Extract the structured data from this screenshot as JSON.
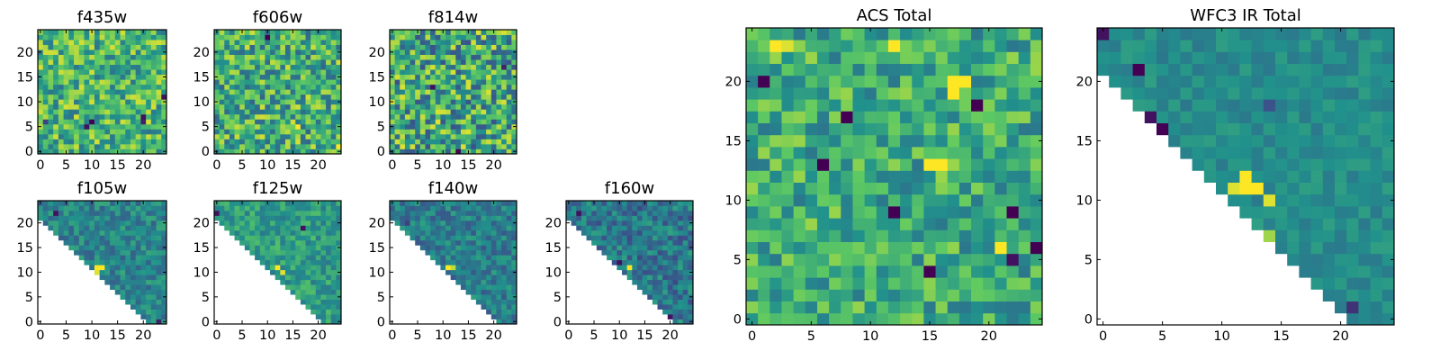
{
  "figure": {
    "colormap": "viridis",
    "colormap_stops": [
      "#440154",
      "#3b528b",
      "#21918c",
      "#5ec962",
      "#fde725"
    ],
    "background": "#ffffff",
    "frame_color": "#000000"
  },
  "chart_data": [
    {
      "type": "heatmap",
      "title": "f435w",
      "grid": [
        25,
        25
      ],
      "masked_corner": false,
      "xticks": [
        0,
        5,
        10,
        15,
        20
      ],
      "yticks": [
        0,
        5,
        10,
        15,
        20
      ],
      "xlim": [
        0,
        24
      ],
      "ylim": [
        0,
        24
      ],
      "value_range": [
        0,
        1
      ],
      "seed": 11,
      "mean": 0.66,
      "spread": 0.55,
      "features": [
        {
          "x": 10,
          "y": 6,
          "v": 0.0
        },
        {
          "x": 9,
          "y": 5,
          "v": 0.05
        },
        {
          "x": 20,
          "y": 7,
          "v": 0.05
        },
        {
          "x": 20,
          "y": 6,
          "v": 0.1
        },
        {
          "x": 24,
          "y": 11,
          "v": 0.05
        },
        {
          "x": 1,
          "y": 6,
          "v": 0.2
        }
      ]
    },
    {
      "type": "heatmap",
      "title": "f606w",
      "grid": [
        25,
        25
      ],
      "masked_corner": false,
      "xticks": [
        0,
        5,
        10,
        15,
        20
      ],
      "yticks": [
        0,
        5,
        10,
        15,
        20
      ],
      "xlim": [
        0,
        24
      ],
      "ylim": [
        0,
        24
      ],
      "value_range": [
        0,
        1
      ],
      "seed": 23,
      "mean": 0.63,
      "spread": 0.6,
      "features": [
        {
          "x": 10,
          "y": 23,
          "v": 0.0
        },
        {
          "x": 16,
          "y": 5,
          "v": 1.0
        },
        {
          "x": 24,
          "y": 1,
          "v": 1.0
        }
      ]
    },
    {
      "type": "heatmap",
      "title": "f814w",
      "grid": [
        25,
        25
      ],
      "masked_corner": false,
      "xticks": [
        0,
        5,
        10,
        15,
        20
      ],
      "yticks": [
        0,
        5,
        10,
        15,
        20
      ],
      "xlim": [
        0,
        24
      ],
      "ylim": [
        0,
        24
      ],
      "value_range": [
        0,
        1
      ],
      "seed": 37,
      "mean": 0.6,
      "spread": 0.7,
      "features": [
        {
          "x": 13,
          "y": 0,
          "v": 0.0
        },
        {
          "x": 8,
          "y": 13,
          "v": 0.05
        },
        {
          "x": 22,
          "y": 17,
          "v": 0.1
        }
      ]
    },
    {
      "type": "heatmap",
      "title": "f105w",
      "grid": [
        25,
        25
      ],
      "masked_corner": true,
      "xticks": [
        0,
        5,
        10,
        15,
        20
      ],
      "yticks": [
        0,
        5,
        10,
        15,
        20
      ],
      "xlim": [
        0,
        24
      ],
      "ylim": [
        0,
        24
      ],
      "value_range": [
        0,
        1
      ],
      "seed": 41,
      "mean": 0.45,
      "spread": 0.3,
      "features": [
        {
          "x": 11,
          "y": 11,
          "v": 1.0
        },
        {
          "x": 12,
          "y": 11,
          "v": 1.0
        },
        {
          "x": 11,
          "y": 10,
          "v": 0.95
        },
        {
          "x": 9,
          "y": 11,
          "v": 0.0
        },
        {
          "x": 3,
          "y": 16,
          "v": 0.05
        },
        {
          "x": 4,
          "y": 15,
          "v": 0.1
        },
        {
          "x": 3,
          "y": 22,
          "v": 0.05
        },
        {
          "x": 23,
          "y": 0,
          "v": 0.1
        }
      ]
    },
    {
      "type": "heatmap",
      "title": "f125w",
      "grid": [
        25,
        25
      ],
      "masked_corner": true,
      "xticks": [
        0,
        5,
        10,
        15,
        20
      ],
      "yticks": [
        0,
        5,
        10,
        15,
        20
      ],
      "xlim": [
        0,
        24
      ],
      "ylim": [
        0,
        24
      ],
      "value_range": [
        0,
        1
      ],
      "seed": 53,
      "mean": 0.55,
      "spread": 0.3,
      "features": [
        {
          "x": 12,
          "y": 11,
          "v": 1.0
        },
        {
          "x": 13,
          "y": 10,
          "v": 0.95
        },
        {
          "x": 16,
          "y": 3,
          "v": 1.0
        },
        {
          "x": 17,
          "y": 2,
          "v": 0.9
        },
        {
          "x": 13,
          "y": 7,
          "v": 0.0
        },
        {
          "x": 12,
          "y": 8,
          "v": 0.05
        },
        {
          "x": 0,
          "y": 22,
          "v": 0.05
        },
        {
          "x": 17,
          "y": 19,
          "v": 0.05
        }
      ]
    },
    {
      "type": "heatmap",
      "title": "f140w",
      "grid": [
        25,
        25
      ],
      "masked_corner": true,
      "xticks": [
        0,
        5,
        10,
        15,
        20
      ],
      "yticks": [
        0,
        5,
        10,
        15,
        20
      ],
      "xlim": [
        0,
        24
      ],
      "ylim": [
        0,
        24
      ],
      "value_range": [
        0,
        1
      ],
      "seed": 61,
      "mean": 0.42,
      "spread": 0.3,
      "features": [
        {
          "x": 11,
          "y": 11,
          "v": 1.0
        },
        {
          "x": 12,
          "y": 11,
          "v": 0.9
        },
        {
          "x": 19,
          "y": 0,
          "v": 0.0
        },
        {
          "x": 18,
          "y": 1,
          "v": 0.05
        },
        {
          "x": 20,
          "y": 0,
          "v": 0.05
        },
        {
          "x": 3,
          "y": 20,
          "v": 0.2
        }
      ]
    },
    {
      "type": "heatmap",
      "title": "f160w",
      "grid": [
        25,
        25
      ],
      "masked_corner": true,
      "xticks": [
        0,
        5,
        10,
        15,
        20
      ],
      "yticks": [
        0,
        5,
        10,
        15,
        20
      ],
      "xlim": [
        0,
        24
      ],
      "ylim": [
        0,
        24
      ],
      "value_range": [
        0,
        1
      ],
      "seed": 71,
      "mean": 0.4,
      "spread": 0.35,
      "features": [
        {
          "x": 12,
          "y": 11,
          "v": 1.0
        },
        {
          "x": 13,
          "y": 7,
          "v": 1.0
        },
        {
          "x": 14,
          "y": 6,
          "v": 0.95
        },
        {
          "x": 17,
          "y": 3,
          "v": 1.0
        },
        {
          "x": 19,
          "y": 0,
          "v": 0.0
        },
        {
          "x": 20,
          "y": 1,
          "v": 0.05
        },
        {
          "x": 10,
          "y": 12,
          "v": 0.05
        },
        {
          "x": 2,
          "y": 22,
          "v": 0.05
        }
      ]
    },
    {
      "type": "heatmap",
      "title": "ACS Total",
      "grid": [
        25,
        25
      ],
      "masked_corner": false,
      "xticks": [
        0,
        5,
        10,
        15,
        20
      ],
      "yticks": [
        0,
        5,
        10,
        15,
        20
      ],
      "xlim": [
        0,
        24
      ],
      "ylim": [
        0,
        24
      ],
      "value_range": [
        0,
        1
      ],
      "seed": 83,
      "mean": 0.62,
      "spread": 0.45,
      "features": [
        {
          "x": 1,
          "y": 20,
          "v": 0.0
        },
        {
          "x": 8,
          "y": 17,
          "v": 0.0
        },
        {
          "x": 6,
          "y": 13,
          "v": 0.0
        },
        {
          "x": 19,
          "y": 18,
          "v": 0.0
        },
        {
          "x": 12,
          "y": 9,
          "v": 0.0
        },
        {
          "x": 15,
          "y": 4,
          "v": 0.0
        },
        {
          "x": 22,
          "y": 9,
          "v": 0.0
        },
        {
          "x": 24,
          "y": 6,
          "v": 0.0
        },
        {
          "x": 22,
          "y": 5,
          "v": 0.05
        },
        {
          "x": 17,
          "y": 20,
          "v": 1.0
        },
        {
          "x": 18,
          "y": 20,
          "v": 1.0
        },
        {
          "x": 17,
          "y": 19,
          "v": 1.0
        },
        {
          "x": 12,
          "y": 23,
          "v": 1.0
        },
        {
          "x": 15,
          "y": 13,
          "v": 1.0
        },
        {
          "x": 16,
          "y": 13,
          "v": 1.0
        },
        {
          "x": 21,
          "y": 6,
          "v": 1.0
        },
        {
          "x": 2,
          "y": 23,
          "v": 1.0
        },
        {
          "x": 3,
          "y": 23,
          "v": 0.95
        }
      ]
    },
    {
      "type": "heatmap",
      "title": "WFC3 IR Total",
      "grid": [
        25,
        25
      ],
      "masked_corner": true,
      "xticks": [
        0,
        5,
        10,
        15,
        20
      ],
      "yticks": [
        0,
        5,
        10,
        15,
        20
      ],
      "xlim": [
        0,
        24
      ],
      "ylim": [
        0,
        24
      ],
      "value_range": [
        0,
        1
      ],
      "seed": 97,
      "mean": 0.48,
      "spread": 0.16,
      "features": [
        {
          "x": 4,
          "y": 16,
          "v": 0.0
        },
        {
          "x": 5,
          "y": 16,
          "v": 0.0
        },
        {
          "x": 4,
          "y": 17,
          "v": 0.05
        },
        {
          "x": 5,
          "y": 15,
          "v": 0.05
        },
        {
          "x": 3,
          "y": 21,
          "v": 0.0
        },
        {
          "x": 0,
          "y": 24,
          "v": 0.05
        },
        {
          "x": 8,
          "y": 11,
          "v": 0.0
        },
        {
          "x": 12,
          "y": 11,
          "v": 1.0
        },
        {
          "x": 13,
          "y": 11,
          "v": 1.0
        },
        {
          "x": 12,
          "y": 12,
          "v": 1.0
        },
        {
          "x": 11,
          "y": 11,
          "v": 0.95
        },
        {
          "x": 14,
          "y": 10,
          "v": 0.95
        },
        {
          "x": 15,
          "y": 3,
          "v": 0.95
        },
        {
          "x": 16,
          "y": 3,
          "v": 0.95
        },
        {
          "x": 15,
          "y": 2,
          "v": 0.9
        },
        {
          "x": 14,
          "y": 7,
          "v": 0.85
        },
        {
          "x": 20,
          "y": 0,
          "v": 0.0
        },
        {
          "x": 19,
          "y": 0,
          "v": 0.1
        },
        {
          "x": 21,
          "y": 1,
          "v": 0.15
        },
        {
          "x": 14,
          "y": 18,
          "v": 0.25
        }
      ]
    }
  ]
}
